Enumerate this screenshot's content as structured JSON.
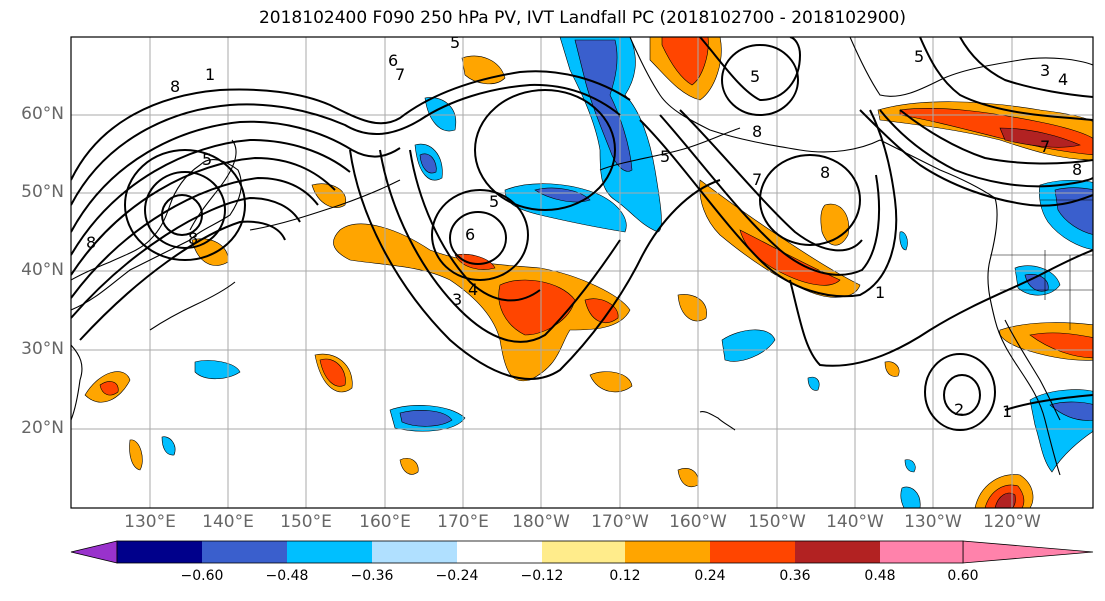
{
  "title": "2018102400 F090 250 hPa PV, IVT Landfall PC (2018102700 - 2018102900)",
  "lat_labels": [
    "60°N",
    "50°N",
    "40°N",
    "30°N",
    "20°N"
  ],
  "lon_labels": [
    "130°E",
    "140°E",
    "150°E",
    "160°E",
    "170°E",
    "180°W",
    "170°W",
    "160°W",
    "150°W",
    "140°W",
    "130°W",
    "120°W"
  ],
  "contour_labels": [
    "8",
    "1",
    "6",
    "7",
    "5",
    "8",
    "5",
    "8",
    "3",
    "5",
    "7",
    "8",
    "1",
    "4",
    "7",
    "3",
    "5",
    "4",
    "2",
    "1",
    "8",
    "5",
    "8",
    "6",
    "5"
  ],
  "colorbar": {
    "ticks": [
      "−0.60",
      "−0.48",
      "−0.36",
      "−0.24",
      "−0.12",
      "0.12",
      "0.24",
      "0.36",
      "0.48",
      "0.60"
    ],
    "colors": [
      "#9932cc",
      "#00008b",
      "#3a5fcd",
      "#00bfff",
      "#b0e0ff",
      "#ffffff",
      "#ffec8b",
      "#ffa500",
      "#ff4500",
      "#b22222",
      "#ff82ab"
    ]
  }
}
